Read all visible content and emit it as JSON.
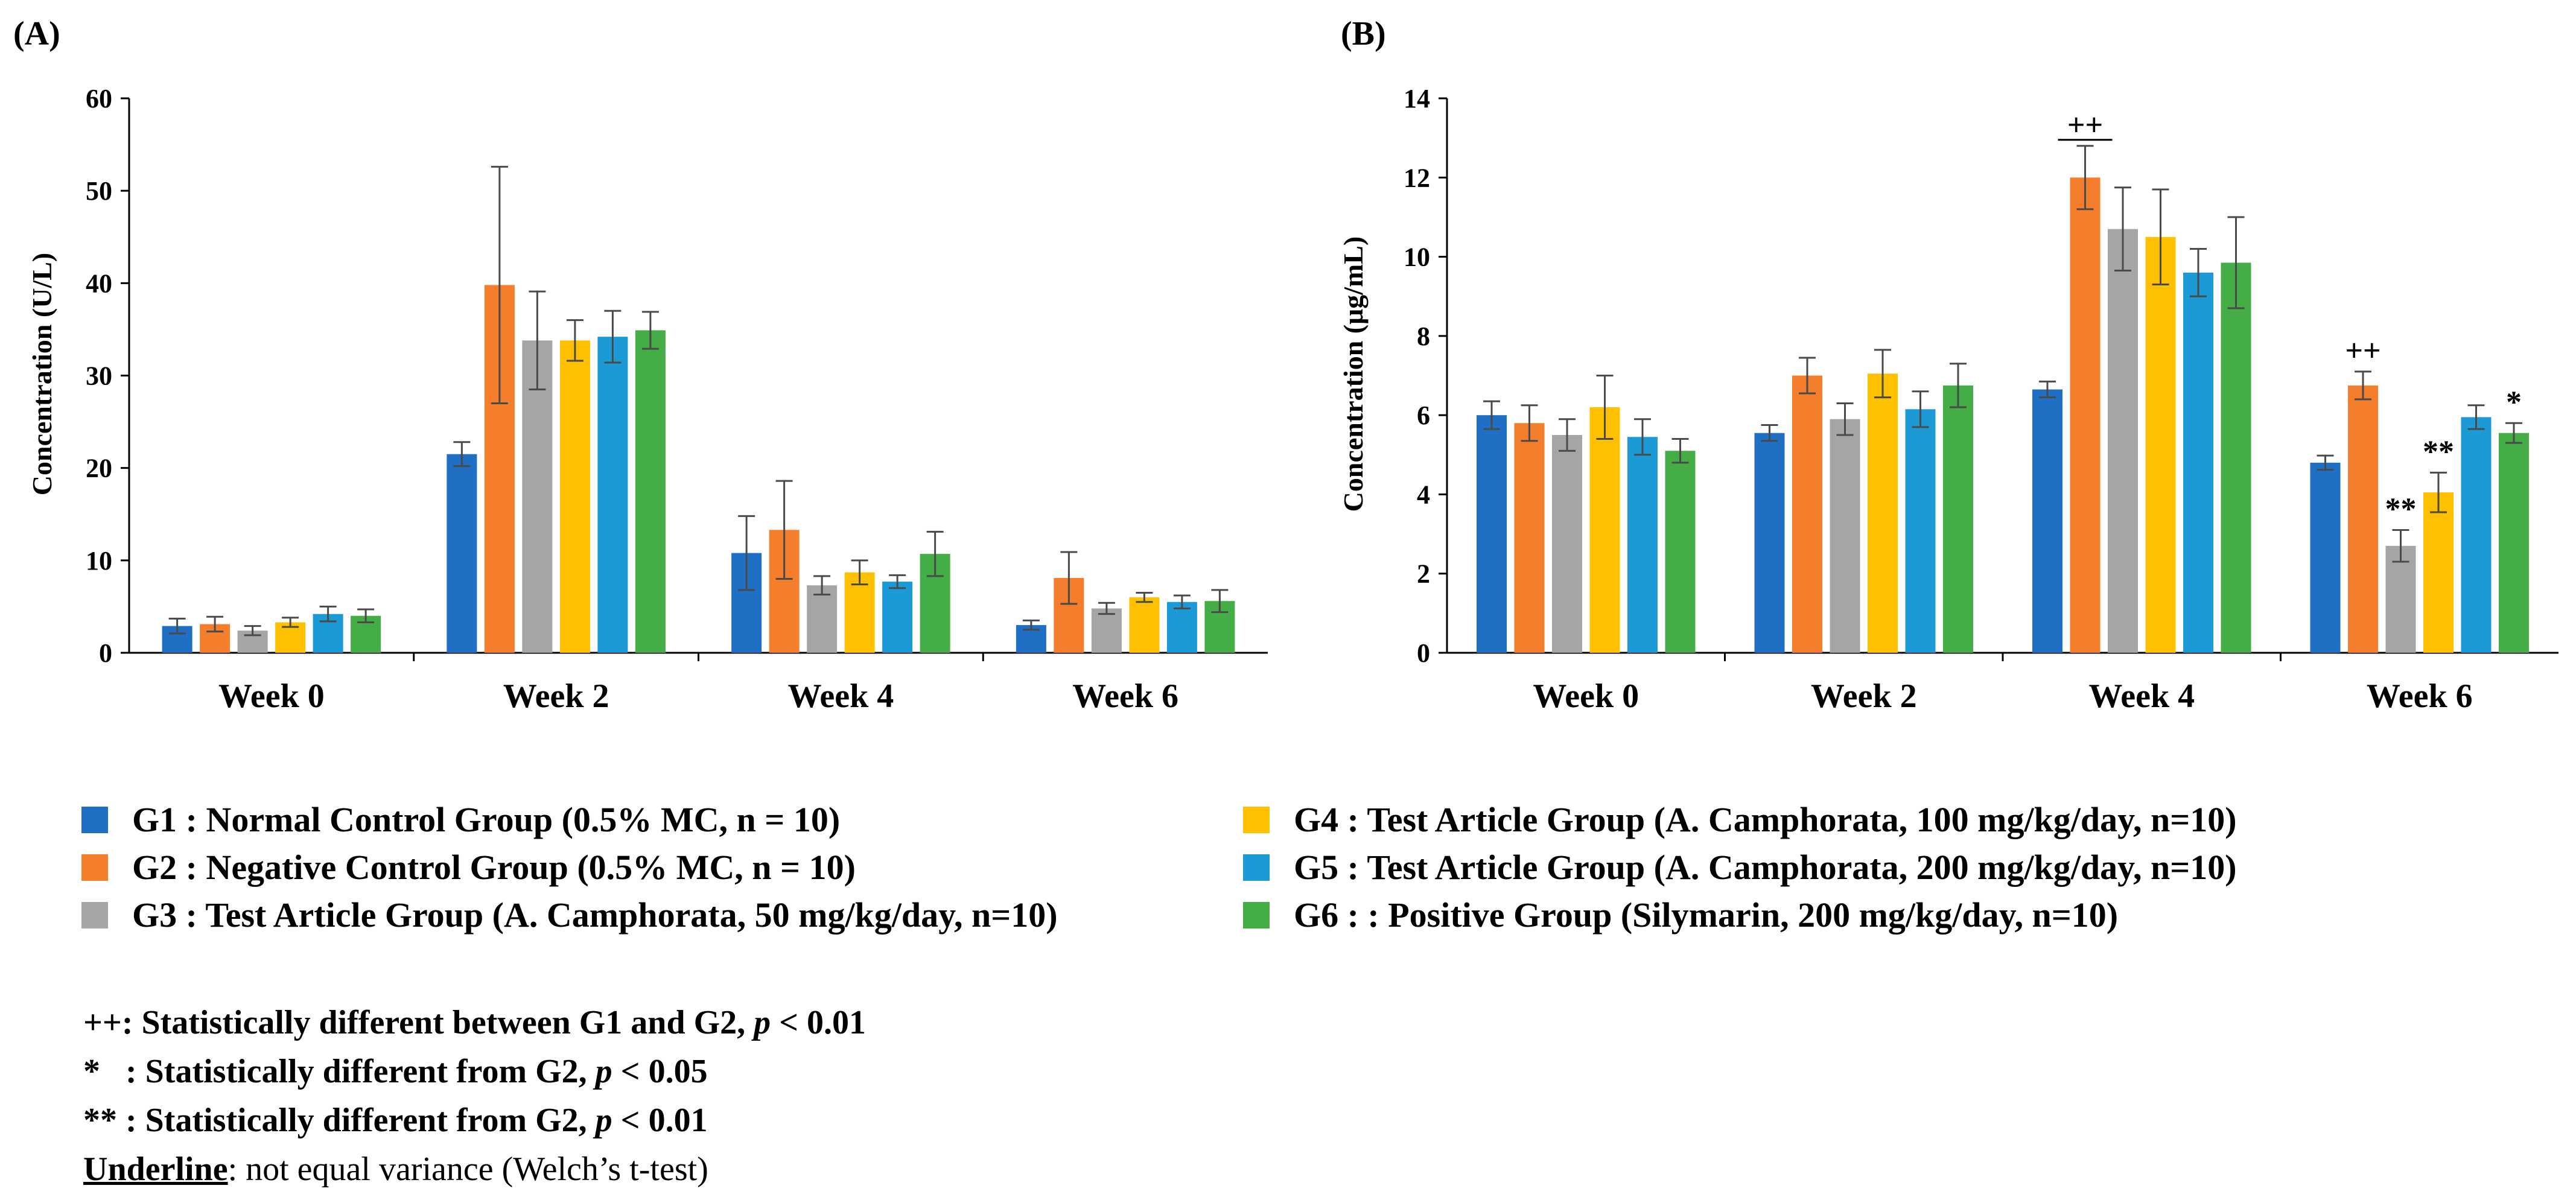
{
  "colors": {
    "G1": "#1f6fc5",
    "G2": "#f47e2b",
    "G3": "#a5a5a5",
    "G4": "#ffc000",
    "G5": "#1b9ad6",
    "G6": "#44ad45",
    "axis": "#000000",
    "error_bar": "#4a4a4a"
  },
  "chart_data": [
    {
      "panel_label": "(A)",
      "type": "bar",
      "ylabel": "Concentration (U/L)",
      "xlabel": "",
      "ylim": [
        0,
        60
      ],
      "yticks": [
        "0",
        "10",
        "20",
        "30",
        "40",
        "50",
        "60"
      ],
      "categories": [
        "Week 0",
        "Week 2",
        "Week 4",
        "Week 6"
      ],
      "series": [
        {
          "name": "G1",
          "values": [
            2.9,
            21.5,
            10.8,
            3.0
          ],
          "errors": [
            0.8,
            1.3,
            4.0,
            0.5
          ]
        },
        {
          "name": "G2",
          "values": [
            3.1,
            39.8,
            13.3,
            8.1
          ],
          "errors": [
            0.8,
            12.8,
            5.3,
            2.8
          ]
        },
        {
          "name": "G3",
          "values": [
            2.4,
            33.8,
            7.3,
            4.8
          ],
          "errors": [
            0.5,
            5.3,
            1.0,
            0.6
          ]
        },
        {
          "name": "G4",
          "values": [
            3.3,
            33.8,
            8.7,
            6.0
          ],
          "errors": [
            0.5,
            2.2,
            1.3,
            0.5
          ]
        },
        {
          "name": "G5",
          "values": [
            4.2,
            34.2,
            7.7,
            5.5
          ],
          "errors": [
            0.8,
            2.8,
            0.7,
            0.7
          ]
        },
        {
          "name": "G6",
          "values": [
            4.0,
            34.9,
            10.7,
            5.6
          ],
          "errors": [
            0.7,
            2.0,
            2.4,
            1.2
          ]
        }
      ],
      "annotations": []
    },
    {
      "panel_label": "(B)",
      "type": "bar",
      "ylabel": "Concentration (μg/mL)",
      "xlabel": "",
      "ylim": [
        0,
        14
      ],
      "yticks": [
        "0",
        "2",
        "4",
        "6",
        "8",
        "10",
        "12",
        "14"
      ],
      "categories": [
        "Week 0",
        "Week 2",
        "Week 4",
        "Week 6"
      ],
      "series": [
        {
          "name": "G1",
          "values": [
            6.0,
            5.55,
            6.65,
            4.8
          ],
          "errors": [
            0.35,
            0.2,
            0.2,
            0.18
          ]
        },
        {
          "name": "G2",
          "values": [
            5.8,
            7.0,
            12.0,
            6.75
          ],
          "errors": [
            0.45,
            0.45,
            0.8,
            0.35
          ]
        },
        {
          "name": "G3",
          "values": [
            5.5,
            5.9,
            10.7,
            2.7
          ],
          "errors": [
            0.4,
            0.4,
            1.05,
            0.4
          ]
        },
        {
          "name": "G4",
          "values": [
            6.2,
            7.05,
            10.5,
            4.05
          ],
          "errors": [
            0.8,
            0.6,
            1.2,
            0.5
          ]
        },
        {
          "name": "G5",
          "values": [
            5.45,
            6.15,
            9.6,
            5.95
          ],
          "errors": [
            0.45,
            0.45,
            0.6,
            0.3
          ]
        },
        {
          "name": "G6",
          "values": [
            5.1,
            6.75,
            9.85,
            5.55
          ],
          "errors": [
            0.3,
            0.55,
            1.15,
            0.25
          ]
        }
      ],
      "annotations": [
        {
          "text": "++",
          "category": 2,
          "series": 1,
          "underline": true
        },
        {
          "text": "++",
          "category": 3,
          "series": 1,
          "underline": false
        },
        {
          "text": "**",
          "category": 3,
          "series": 2,
          "underline": false
        },
        {
          "text": "**",
          "category": 3,
          "series": 3,
          "underline": false
        },
        {
          "text": "*",
          "category": 3,
          "series": 5,
          "underline": false
        }
      ]
    }
  ],
  "legend": [
    {
      "key": "G1",
      "label": "G1 : Normal Control Group (0.5% MC, n = 10)"
    },
    {
      "key": "G2",
      "label": "G2 : Negative Control Group (0.5% MC, n = 10)"
    },
    {
      "key": "G3",
      "label": "G3 : Test Article Group (A. Camphorata, 50 mg/kg/day, n=10)"
    },
    {
      "key": "G4",
      "label": "G4 : Test Article Group (A. Camphorata, 100 mg/kg/day, n=10)"
    },
    {
      "key": "G5",
      "label": "G5 : Test Article Group (A. Camphorata, 200 mg/kg/day, n=10)"
    },
    {
      "key": "G6",
      "label": "G6 : : Positive Group (Silymarin, 200 mg/kg/day, n=10)"
    }
  ],
  "notes": {
    "n1_prefix": "++: Statistically different between G1 and G2, ",
    "n1_p": "p",
    "n1_suffix": " < 0.01",
    "n2_prefix": "*   : Statistically different from G2, ",
    "n2_p": "p",
    "n2_suffix": " < 0.05",
    "n3_prefix": "** : Statistically different from G2, ",
    "n3_p": "p",
    "n3_suffix": " < 0.01",
    "n4_underlined": "Underline",
    "n4_rest": ": not equal variance (Welch’s t-test)"
  }
}
